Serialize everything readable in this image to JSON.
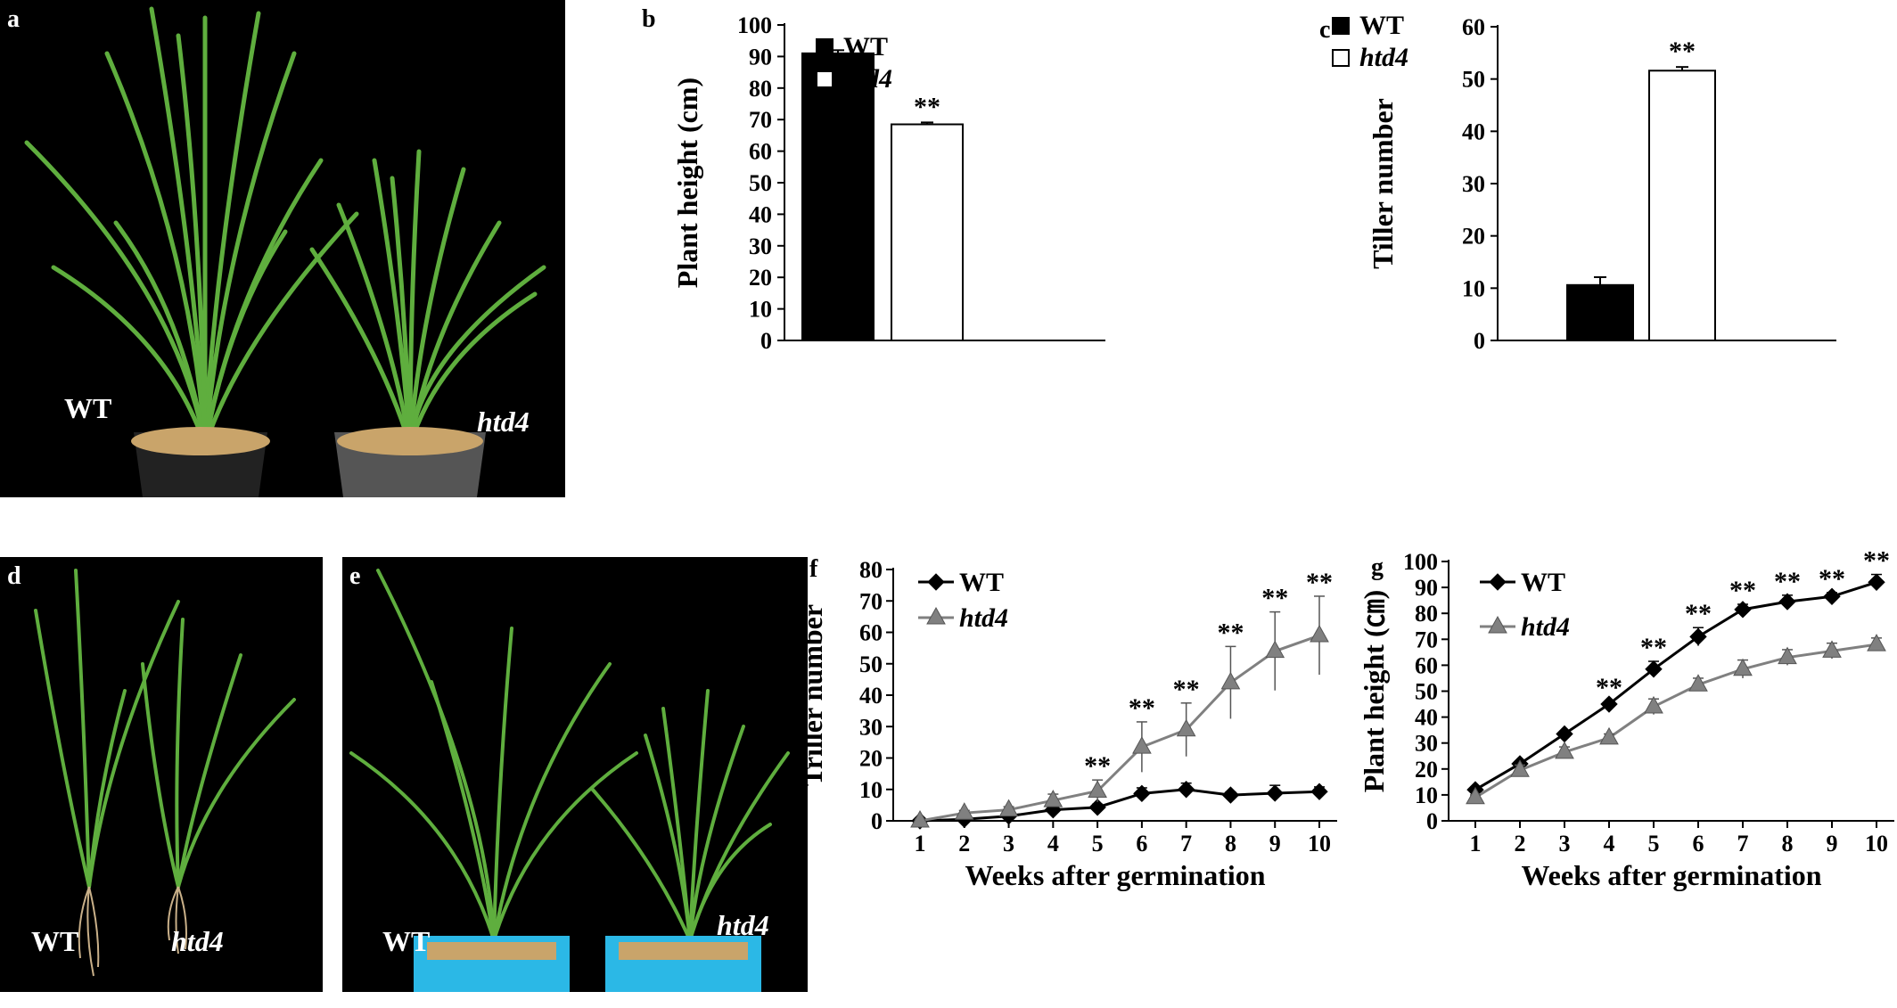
{
  "photos": {
    "a": {
      "letter": "a",
      "left_label": "WT",
      "right_label": "htd4"
    },
    "d": {
      "letter": "d",
      "left_label": "WT",
      "right_label": "htd4"
    },
    "e": {
      "letter": "e",
      "left_label": "WT",
      "right_label": "htd4"
    }
  },
  "colors": {
    "wt": "#000000",
    "htd4": "#808080",
    "htd4_bar": "#ffffff",
    "background": "#000000",
    "plant": "#4caf50"
  },
  "chart_data": [
    {
      "id": "b",
      "letter": "b",
      "type": "bar",
      "categories": [
        "WT",
        "htd4"
      ],
      "values": [
        91,
        68.5
      ],
      "errors": [
        1,
        0.6
      ],
      "significance": [
        "",
        "**"
      ],
      "ylabel": "Plant height (cm)",
      "ylim": [
        0,
        100
      ],
      "yticks": [
        0,
        10,
        20,
        30,
        40,
        50,
        60,
        70,
        80,
        90,
        100
      ],
      "legend": [
        {
          "label": "WT",
          "fill": "#000000"
        },
        {
          "label": "htd4",
          "fill": "#ffffff"
        }
      ],
      "legend_position": "top-right"
    },
    {
      "id": "c",
      "letter": "c",
      "type": "bar",
      "categories": [
        "WT",
        "htd4"
      ],
      "values": [
        10.6,
        51.6
      ],
      "errors": [
        1.5,
        0.7
      ],
      "significance": [
        "",
        "**"
      ],
      "ylabel": "Tiller number",
      "ylim": [
        0,
        60
      ],
      "yticks": [
        0,
        10,
        20,
        30,
        40,
        50,
        60
      ],
      "legend": [
        {
          "label": "WT",
          "fill": "#000000"
        },
        {
          "label": "htd4",
          "fill": "#ffffff"
        }
      ],
      "legend_position": "top-left"
    },
    {
      "id": "f",
      "letter": "f",
      "type": "line",
      "x": [
        1,
        2,
        3,
        4,
        5,
        6,
        7,
        8,
        9,
        10
      ],
      "series": [
        {
          "name": "WT",
          "values": [
            0,
            0.5,
            1.5,
            3.5,
            4.3,
            8.7,
            10,
            8.2,
            8.8,
            9.3
          ],
          "errors": [
            0.3,
            0.5,
            0.6,
            0.8,
            1,
            1.8,
            2,
            1,
            2.5,
            1.5
          ],
          "color": "#000000",
          "marker": "diamond"
        },
        {
          "name": "htd4",
          "values": [
            0,
            2.5,
            3.5,
            6.5,
            9.5,
            23.5,
            29,
            44,
            54,
            59
          ],
          "errors": [
            0.5,
            0.8,
            1,
            2,
            3.5,
            8,
            8.5,
            11.5,
            12.5,
            12.5
          ],
          "color": "#808080",
          "marker": "triangle"
        }
      ],
      "significance": [
        "",
        "",
        "",
        "",
        "**",
        "**",
        "**",
        "**",
        "**",
        "**"
      ],
      "xlabel": "Weeks after germination",
      "ylabel": "Triller number",
      "ylim": [
        0,
        80
      ],
      "yticks": [
        0,
        10,
        20,
        30,
        40,
        50,
        60,
        70,
        80
      ],
      "legend_position": "top-left"
    },
    {
      "id": "g",
      "letter": "g",
      "type": "line",
      "x": [
        1,
        2,
        3,
        4,
        5,
        6,
        7,
        8,
        9,
        10
      ],
      "series": [
        {
          "name": "WT",
          "values": [
            12,
            22,
            33.5,
            45,
            58.5,
            71,
            81.5,
            84.5,
            86.5,
            92
          ],
          "errors": [
            1,
            1,
            1,
            1,
            3,
            3.5,
            2,
            2.5,
            1.5,
            3
          ],
          "color": "#000000",
          "marker": "diamond"
        },
        {
          "name": "htd4",
          "values": [
            9,
            19.5,
            26.5,
            32,
            44,
            52.5,
            58.5,
            63,
            65.5,
            68
          ],
          "errors": [
            1,
            2,
            2,
            1.5,
            3,
            2.5,
            3.5,
            3,
            3,
            2.5
          ],
          "color": "#808080",
          "marker": "triangle"
        }
      ],
      "significance": [
        "",
        "",
        "",
        "**",
        "**",
        "**",
        "**",
        "**",
        "**",
        "**"
      ],
      "xlabel": "Weeks after germination",
      "ylabel": "Plant height (㎝)",
      "ylim": [
        0,
        100
      ],
      "yticks": [
        0,
        10,
        20,
        30,
        40,
        50,
        60,
        70,
        80,
        90,
        100
      ],
      "legend_position": "top-left"
    }
  ]
}
